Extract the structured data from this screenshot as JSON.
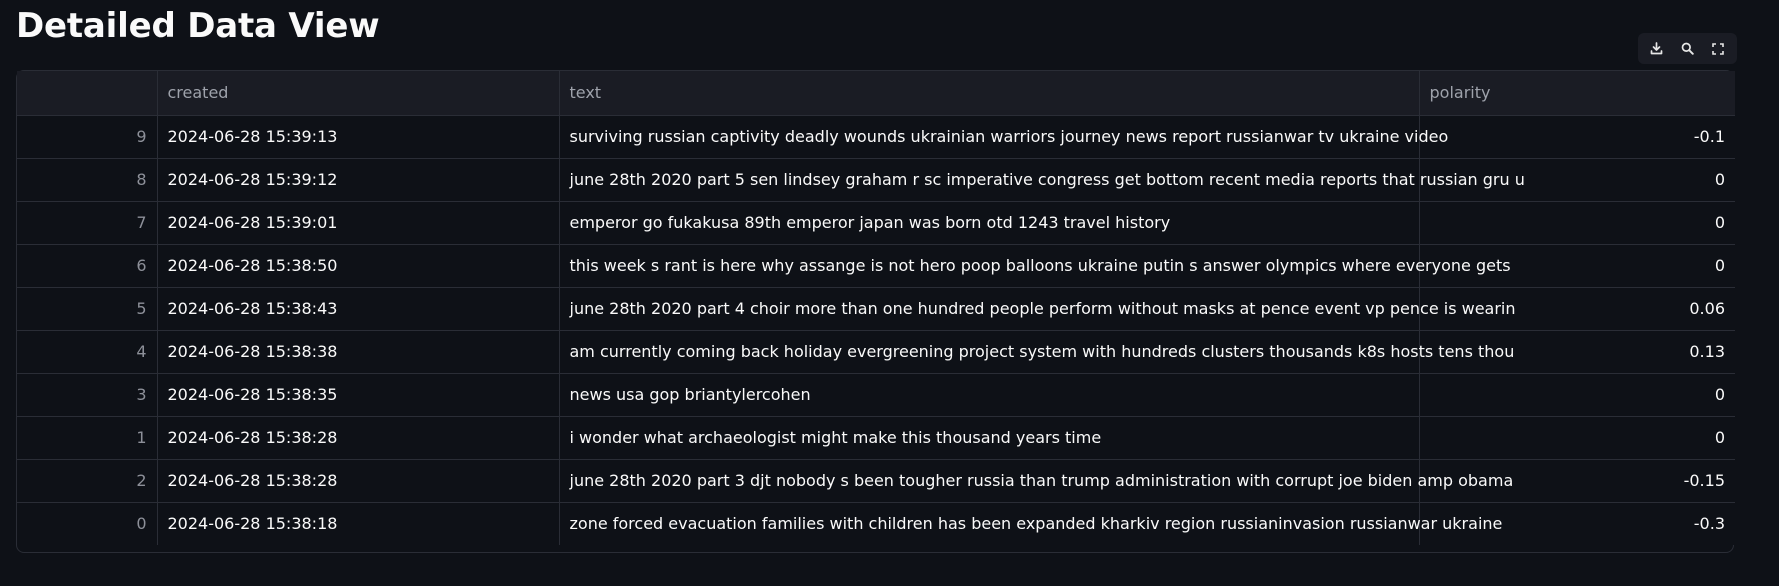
{
  "page": {
    "title": "Detailed Data View"
  },
  "toolbar": {
    "buttons": [
      {
        "name": "download-button",
        "icon": "download-icon"
      },
      {
        "name": "search-button",
        "icon": "search-icon"
      },
      {
        "name": "fullscreen-button",
        "icon": "fullscreen-icon"
      }
    ]
  },
  "table": {
    "columns": [
      "",
      "created",
      "text",
      "polarity"
    ],
    "rows": [
      {
        "index": "9",
        "created": "2024-06-28 15:39:13",
        "text": "surviving russian captivity deadly wounds ukrainian warriors journey news report russianwar tv ukraine video",
        "polarity": "-0.1"
      },
      {
        "index": "8",
        "created": "2024-06-28 15:39:12",
        "text": "june 28th 2020 part 5 sen lindsey graham r sc imperative congress get bottom recent media reports that russian gru u",
        "polarity": "0"
      },
      {
        "index": "7",
        "created": "2024-06-28 15:39:01",
        "text": "emperor go fukakusa 89th emperor japan was born otd 1243 travel history",
        "polarity": "0"
      },
      {
        "index": "6",
        "created": "2024-06-28 15:38:50",
        "text": "this week s rant is here why assange is not hero poop balloons ukraine putin s answer olympics where everyone gets",
        "polarity": "0"
      },
      {
        "index": "5",
        "created": "2024-06-28 15:38:43",
        "text": "june 28th 2020 part 4 choir more than one hundred people perform without masks at pence event vp pence is wearin",
        "polarity": "0.06"
      },
      {
        "index": "4",
        "created": "2024-06-28 15:38:38",
        "text": "am currently coming back holiday evergreening project system with hundreds clusters thousands k8s hosts tens thou",
        "polarity": "0.13"
      },
      {
        "index": "3",
        "created": "2024-06-28 15:38:35",
        "text": "news usa gop briantylercohen",
        "polarity": "0"
      },
      {
        "index": "1",
        "created": "2024-06-28 15:38:28",
        "text": "i wonder what archaeologist might make this thousand years time",
        "polarity": "0"
      },
      {
        "index": "2",
        "created": "2024-06-28 15:38:28",
        "text": "june 28th 2020 part 3 djt nobody s been tougher russia than trump administration with corrupt joe biden amp obama",
        "polarity": "-0.15"
      },
      {
        "index": "0",
        "created": "2024-06-28 15:38:18",
        "text": "zone forced evacuation families with children has been expanded kharkiv region russianinvasion russianwar ukraine",
        "polarity": "-0.3"
      }
    ]
  }
}
